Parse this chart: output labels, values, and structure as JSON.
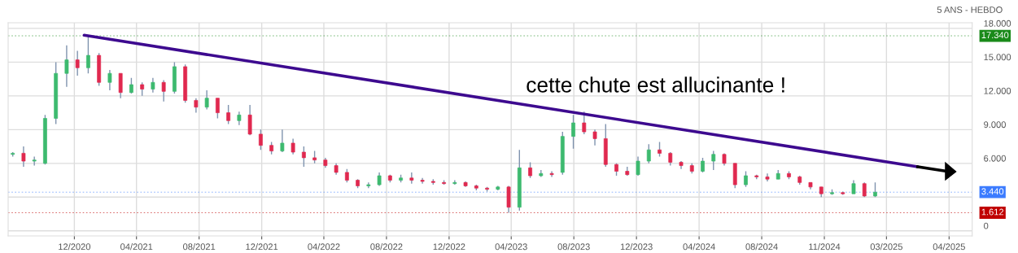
{
  "chart_data": {
    "type": "candlestick",
    "subtitle": "5 ANS - HEBDO",
    "x": [
      "2020-08-03",
      "2020-08-24",
      "2020-09-14",
      "2020-10-05",
      "2020-10-26",
      "2020-11-16",
      "2020-12-07",
      "2020-12-28",
      "2021-01-18",
      "2021-02-08",
      "2021-03-01",
      "2021-03-22",
      "2021-04-12",
      "2021-05-03",
      "2021-05-24",
      "2021-06-14",
      "2021-07-05",
      "2021-07-26",
      "2021-08-16",
      "2021-09-06",
      "2021-09-27",
      "2021-10-18",
      "2021-11-08",
      "2021-11-29",
      "2021-12-20",
      "2022-01-10",
      "2022-01-31",
      "2022-02-21",
      "2022-03-14",
      "2022-04-04",
      "2022-04-25",
      "2022-05-16",
      "2022-06-06",
      "2022-06-27",
      "2022-07-18",
      "2022-08-08",
      "2022-08-29",
      "2022-09-19",
      "2022-10-10",
      "2022-10-31",
      "2022-11-21",
      "2022-12-12",
      "2023-01-02",
      "2023-01-23",
      "2023-02-13",
      "2023-03-06",
      "2023-03-27",
      "2023-04-17",
      "2023-05-08",
      "2023-05-29",
      "2023-06-19",
      "2023-07-10",
      "2023-07-31",
      "2023-08-21",
      "2023-09-11",
      "2023-10-02",
      "2023-10-23",
      "2023-11-13",
      "2023-12-04",
      "2023-12-25",
      "2024-01-15",
      "2024-02-05",
      "2024-02-26",
      "2024-03-18",
      "2024-04-08",
      "2024-04-29",
      "2024-05-20",
      "2024-06-10",
      "2024-07-01",
      "2024-07-22",
      "2024-08-12",
      "2024-09-02",
      "2024-09-23",
      "2024-10-14",
      "2024-11-04",
      "2024-11-25",
      "2024-12-16",
      "2025-01-06",
      "2025-01-27",
      "2025-02-17",
      "2025-03-10"
    ],
    "ohlc": [
      [
        6800,
        7000,
        6600,
        6900
      ],
      [
        6900,
        7500,
        5700,
        6200
      ],
      [
        6200,
        6600,
        5800,
        6300
      ],
      [
        6000,
        10300,
        5900,
        10000
      ],
      [
        10000,
        15000,
        9500,
        14000
      ],
      [
        14000,
        16500,
        12800,
        15200
      ],
      [
        15200,
        16000,
        13800,
        14500
      ],
      [
        14500,
        17340,
        14000,
        15600
      ],
      [
        15600,
        15800,
        12900,
        13200
      ],
      [
        13200,
        14300,
        12500,
        14000
      ],
      [
        14000,
        14000,
        11800,
        12300
      ],
      [
        12300,
        13600,
        12200,
        13000
      ],
      [
        13000,
        13200,
        12000,
        12600
      ],
      [
        12600,
        13600,
        12300,
        13200
      ],
      [
        13200,
        13400,
        11500,
        12400
      ],
      [
        12400,
        15000,
        12200,
        14600
      ],
      [
        14600,
        14800,
        11400,
        11600
      ],
      [
        11600,
        11800,
        10500,
        11000
      ],
      [
        11000,
        12500,
        10800,
        11800
      ],
      [
        11800,
        11800,
        10000,
        10500
      ],
      [
        10500,
        11200,
        9500,
        9800
      ],
      [
        9800,
        10600,
        9400,
        10300
      ],
      [
        10300,
        11200,
        8500,
        8600
      ],
      [
        8600,
        9000,
        7200,
        7600
      ],
      [
        7600,
        7900,
        6800,
        7100
      ],
      [
        7100,
        9000,
        7000,
        7800
      ],
      [
        7800,
        8200,
        6800,
        7000
      ],
      [
        7000,
        7500,
        5700,
        6500
      ],
      [
        6500,
        7100,
        6000,
        6300
      ],
      [
        6300,
        6500,
        5600,
        5800
      ],
      [
        5800,
        6000,
        5000,
        5200
      ],
      [
        5200,
        5500,
        4300,
        4500
      ],
      [
        4500,
        4600,
        3800,
        4000
      ],
      [
        4000,
        4300,
        3800,
        4100
      ],
      [
        4100,
        5200,
        4000,
        4900
      ],
      [
        4900,
        5000,
        4300,
        4500
      ],
      [
        4500,
        5000,
        4300,
        4700
      ],
      [
        4700,
        5200,
        4200,
        4500
      ],
      [
        4500,
        4700,
        4200,
        4400
      ],
      [
        4400,
        4600,
        4100,
        4300
      ],
      [
        4300,
        4500,
        4100,
        4200
      ],
      [
        4200,
        4500,
        4100,
        4300
      ],
      [
        4300,
        4400,
        3900,
        4000
      ],
      [
        4000,
        4100,
        3600,
        3800
      ],
      [
        3800,
        3900,
        3500,
        3700
      ],
      [
        3700,
        4000,
        3600,
        3900
      ],
      [
        3900,
        4000,
        1612,
        2100
      ],
      [
        2100,
        7200,
        1800,
        5600
      ],
      [
        5600,
        6100,
        4700,
        4900
      ],
      [
        4900,
        5400,
        4800,
        5100
      ],
      [
        5100,
        5300,
        4800,
        5000
      ],
      [
        5200,
        8800,
        5000,
        8400
      ],
      [
        8400,
        10300,
        7300,
        9600
      ],
      [
        9600,
        10600,
        8600,
        8800
      ],
      [
        8800,
        9000,
        7600,
        8200
      ],
      [
        8200,
        9500,
        5700,
        5900
      ],
      [
        5900,
        6000,
        4900,
        5300
      ],
      [
        5300,
        5700,
        4900,
        5000
      ],
      [
        5000,
        6600,
        4900,
        6200
      ],
      [
        6200,
        7700,
        6000,
        7200
      ],
      [
        7200,
        7900,
        6600,
        6900
      ],
      [
        6900,
        7000,
        5800,
        6100
      ],
      [
        6100,
        6200,
        5500,
        5800
      ],
      [
        5800,
        6000,
        5100,
        5300
      ],
      [
        5300,
        6500,
        5200,
        6200
      ],
      [
        6200,
        7100,
        5400,
        6800
      ],
      [
        6800,
        6900,
        5800,
        6000
      ],
      [
        6000,
        6000,
        3800,
        4100
      ],
      [
        4100,
        5300,
        3900,
        4900
      ],
      [
        4900,
        5000,
        4600,
        4800
      ],
      [
        4800,
        5100,
        4400,
        4600
      ],
      [
        4600,
        5400,
        4600,
        5100
      ],
      [
        5100,
        5300,
        4600,
        4800
      ],
      [
        4800,
        4900,
        4100,
        4300
      ],
      [
        4300,
        4300,
        3700,
        3900
      ],
      [
        3900,
        3900,
        3000,
        3300
      ],
      [
        3300,
        3700,
        3200,
        3400
      ],
      [
        3400,
        3500,
        3200,
        3300
      ],
      [
        3300,
        4500,
        3300,
        4200
      ],
      [
        4200,
        4300,
        3000,
        3100
      ],
      [
        3100,
        4300,
        3000,
        3440
      ]
    ],
    "colors": [
      "#3dba6f",
      "#e0294f",
      "#3dba6f",
      "#3dba6f",
      "#3dba6f",
      "#3dba6f",
      "#e0294f",
      "#3dba6f",
      "#e0294f",
      "#3dba6f",
      "#e0294f",
      "#3dba6f",
      "#e0294f",
      "#3dba6f",
      "#e0294f",
      "#3dba6f",
      "#e0294f",
      "#e0294f",
      "#3dba6f",
      "#e0294f",
      "#e0294f",
      "#3dba6f",
      "#e0294f",
      "#e0294f",
      "#e0294f",
      "#3dba6f",
      "#e0294f",
      "#e0294f",
      "#e0294f",
      "#e0294f",
      "#e0294f",
      "#e0294f",
      "#e0294f",
      "#3dba6f",
      "#3dba6f",
      "#e0294f",
      "#3dba6f",
      "#e0294f",
      "#e0294f",
      "#e0294f",
      "#e0294f",
      "#3dba6f",
      "#e0294f",
      "#e0294f",
      "#e0294f",
      "#3dba6f",
      "#e0294f",
      "#3dba6f",
      "#e0294f",
      "#3dba6f",
      "#e0294f",
      "#3dba6f",
      "#3dba6f",
      "#e0294f",
      "#e0294f",
      "#e0294f",
      "#e0294f",
      "#e0294f",
      "#3dba6f",
      "#3dba6f",
      "#e0294f",
      "#e0294f",
      "#e0294f",
      "#e0294f",
      "#3dba6f",
      "#3dba6f",
      "#e0294f",
      "#e0294f",
      "#3dba6f",
      "#e0294f",
      "#e0294f",
      "#3dba6f",
      "#e0294f",
      "#e0294f",
      "#e0294f",
      "#e0294f",
      "#3dba6f",
      "#e0294f",
      "#3dba6f",
      "#e0294f",
      "#3dba6f"
    ],
    "series": [
      {
        "type": "line",
        "color": "#3d0a8f",
        "x": [
          "2020-12-20",
          "2025-06-01"
        ],
        "values": [
          17400,
          5700
        ]
      }
    ],
    "annotations": [
      "cette chute est allucinante !"
    ],
    "ref_lines": [
      {
        "axis": "y",
        "value": 17340,
        "label": "17.340",
        "color": "#1a8a1a"
      },
      {
        "axis": "y",
        "value": 3440,
        "label": "3.440",
        "color": "#3c7cff"
      },
      {
        "axis": "y",
        "value": 1612,
        "label": "1.612",
        "color": "#c00000"
      }
    ],
    "xlim": [
      "2020-07-25",
      "2025-09-15"
    ],
    "xticks": [
      {
        "value": "2020-12-01",
        "label": "12/2020"
      },
      {
        "value": "2021-04-01",
        "label": "04/2021"
      },
      {
        "value": "2021-08-01",
        "label": "08/2021"
      },
      {
        "value": "2021-12-01",
        "label": "12/2021"
      },
      {
        "value": "2022-04-01",
        "label": "04/2022"
      },
      {
        "value": "2022-08-01",
        "label": "08/2022"
      },
      {
        "value": "2022-12-01",
        "label": "12/2022"
      },
      {
        "value": "2023-04-01",
        "label": "04/2023"
      },
      {
        "value": "2023-08-01",
        "label": "08/2023"
      },
      {
        "value": "2023-12-01",
        "label": "12/2023"
      },
      {
        "value": "2024-04-01",
        "label": "04/2024"
      },
      {
        "value": "2024-08-01",
        "label": "08/2024"
      },
      {
        "value": "2024-12-01",
        "label": "11/2024"
      },
      {
        "value": "2025-04-01",
        "label": "03/2025"
      },
      {
        "value": "2025-08-01",
        "label": "04/2025"
      }
    ],
    "ylim": [
      -450,
      18500
    ],
    "yticks": [
      0,
      {
        "value": 3000,
        "label": null
      },
      {
        "value": 6000,
        "label": "6.000"
      },
      {
        "value": 9000,
        "label": "9.000"
      },
      {
        "value": 12000,
        "label": "12.000"
      },
      {
        "value": 15000,
        "label": "15.000"
      },
      {
        "value": 18000,
        "label": "18.000"
      }
    ],
    "grid": true
  }
}
